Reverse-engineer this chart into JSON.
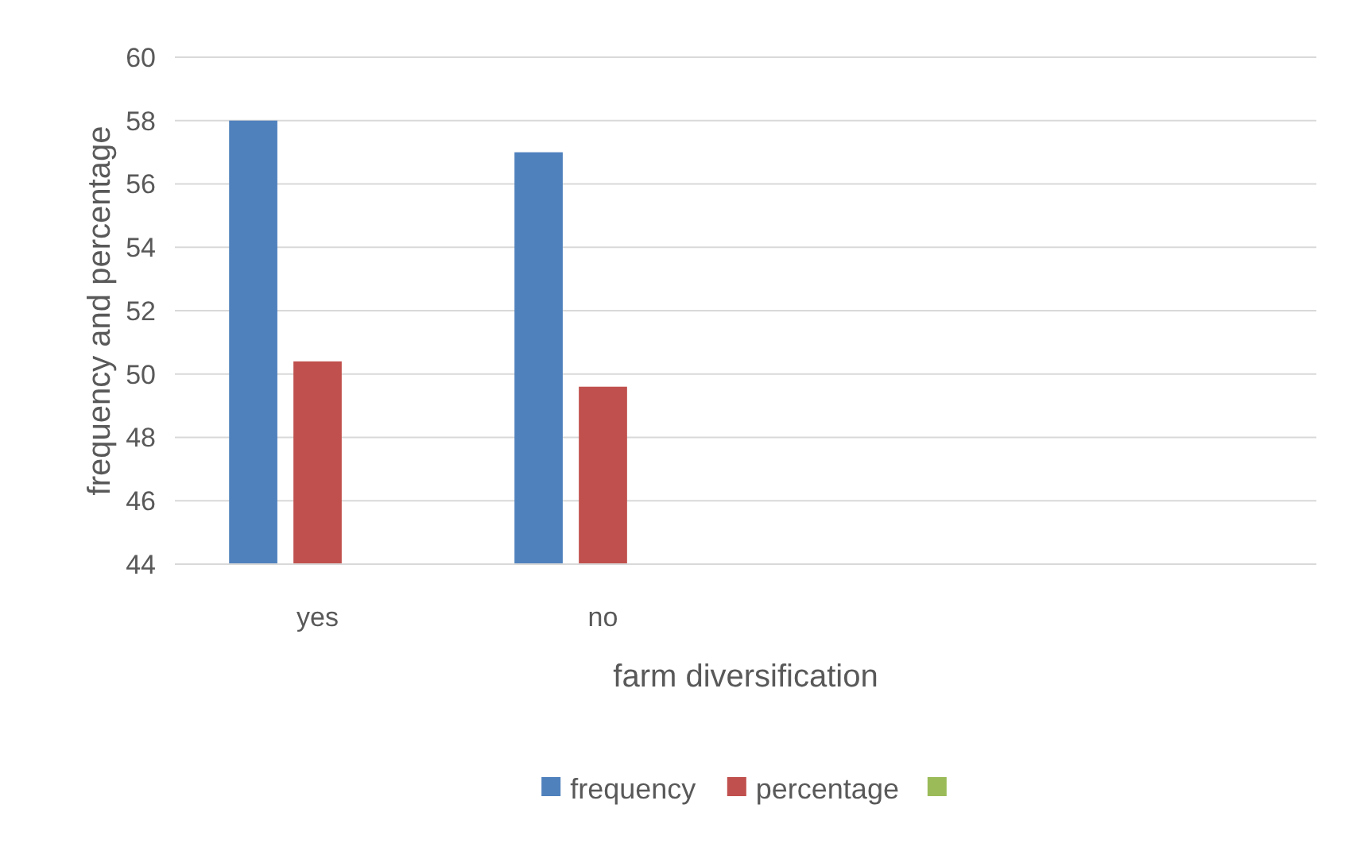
{
  "chart_data": {
    "type": "bar",
    "xlabel": "farm diversification",
    "ylabel": "frequency and percentage",
    "categories": [
      "yes",
      "no",
      null,
      null
    ],
    "series": [
      {
        "name": "frequency",
        "color": "#4f81bd",
        "values": [
          58,
          57,
          null,
          null
        ]
      },
      {
        "name": "percentage",
        "color": "#c0504d",
        "values": [
          50.4,
          49.6,
          null,
          null
        ]
      },
      {
        "color": "#9bbb59",
        "values": [
          null,
          null,
          null,
          null
        ]
      }
    ],
    "ylim": [
      44,
      60
    ],
    "yticks": [
      44,
      46,
      48,
      50,
      52,
      54,
      56,
      58,
      60
    ],
    "grid": "y",
    "legend": "bottom"
  }
}
